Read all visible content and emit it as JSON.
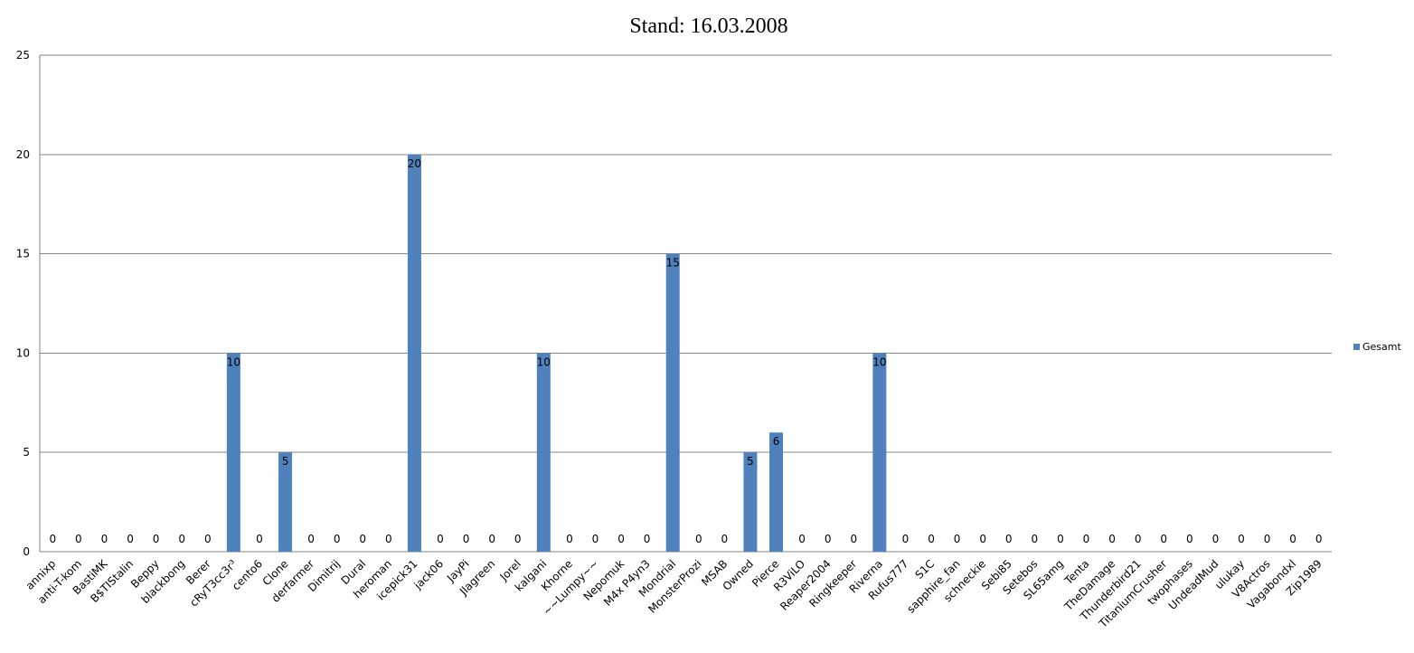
{
  "chart_data": {
    "type": "bar",
    "title": "Stand: 16.03.2008",
    "xlabel": "",
    "ylabel": "",
    "ylim": [
      0,
      25
    ],
    "yticks": [
      0,
      5,
      10,
      15,
      20,
      25
    ],
    "grid": true,
    "legend_position": "right",
    "categories": [
      "annixp",
      "anti-T-kom",
      "BastiMK",
      "B$TIStalin",
      "Beppy",
      "blackbong",
      "Berer",
      "cRyT3cc3r³",
      "cento6",
      "Clone",
      "derfarmer",
      "Dimitrij",
      "Dural",
      "heroman",
      "icepick31",
      "jack06",
      "JayPi",
      "Jlagreen",
      "Jorel",
      "kalgani",
      "Khorne",
      "~~Lumpy~~",
      "Nepomuk",
      "M4x P4yn3",
      "Mondrial",
      "MonsterProzi",
      "MSAB",
      "Owned",
      "Pierce",
      "R3ViLO",
      "Reaper2004",
      "Ringkeeper",
      "Riverna",
      "Rufus777",
      "S1C",
      "sapphire_fan",
      "schneckie",
      "Sebi85",
      "Setebos",
      "SL65amg",
      "Tenta",
      "TheDamage",
      "Thunderbird21",
      "TitaniumCrusher",
      "twophases",
      "UndeadMud",
      "ulukay",
      "V8Actros",
      "Vagabondxl",
      "Zip1989"
    ],
    "series": [
      {
        "name": "Gesamt",
        "color": "#4f81bd",
        "values": [
          0,
          0,
          0,
          0,
          0,
          0,
          0,
          10,
          0,
          5,
          0,
          0,
          0,
          0,
          20,
          0,
          0,
          0,
          0,
          10,
          0,
          0,
          0,
          0,
          15,
          0,
          0,
          5,
          6,
          0,
          0,
          0,
          10,
          0,
          0,
          0,
          0,
          0,
          0,
          0,
          0,
          0,
          0,
          0,
          0,
          0,
          0,
          0,
          0,
          0
        ]
      }
    ]
  }
}
